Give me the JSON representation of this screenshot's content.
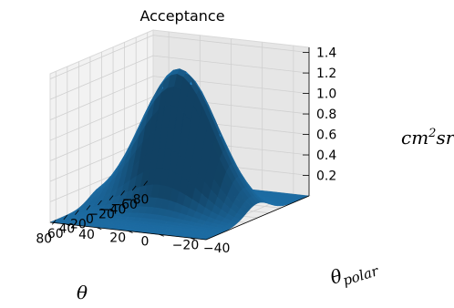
{
  "chart_data": {
    "type": "surface",
    "title": "Acceptance",
    "xlabel": "θ",
    "ylabel": "θ_polar",
    "zlabel": "cm²sr",
    "x_ticks": [
      "−80",
      "−60",
      "−40",
      "−20",
      "0",
      "20",
      "40",
      "60",
      "80"
    ],
    "y_ticks": [
      "−40",
      "−20",
      "0",
      "20",
      "40"
    ],
    "z_ticks": [
      "0.2",
      "0.4",
      "0.6",
      "0.8",
      "1.0",
      "1.2",
      "1.4"
    ],
    "xlim": [
      -90,
      90
    ],
    "ylim": [
      -50,
      50
    ],
    "zlim": [
      0,
      1.45
    ],
    "peak": {
      "theta": 0,
      "theta_polar": 0,
      "value": 1.37
    },
    "profile_theta_at_polar_0": [
      {
        "theta": -80,
        "value": 0.02
      },
      {
        "theta": -60,
        "value": 0.06
      },
      {
        "theta": -40,
        "value": 0.22
      },
      {
        "theta": -20,
        "value": 0.7
      },
      {
        "theta": 0,
        "value": 1.37
      },
      {
        "theta": 20,
        "value": 0.7
      },
      {
        "theta": 40,
        "value": 0.22
      },
      {
        "theta": 60,
        "value": 0.06
      },
      {
        "theta": 80,
        "value": 0.02
      }
    ],
    "profile_polar_at_theta_0": [
      {
        "theta_polar": -40,
        "value": 0.3
      },
      {
        "theta_polar": -20,
        "value": 0.95
      },
      {
        "theta_polar": 0,
        "value": 1.37
      },
      {
        "theta_polar": 20,
        "value": 0.95
      },
      {
        "theta_polar": 40,
        "value": 0.3
      }
    ],
    "surface_color": "#1f77b4",
    "grid": true
  }
}
